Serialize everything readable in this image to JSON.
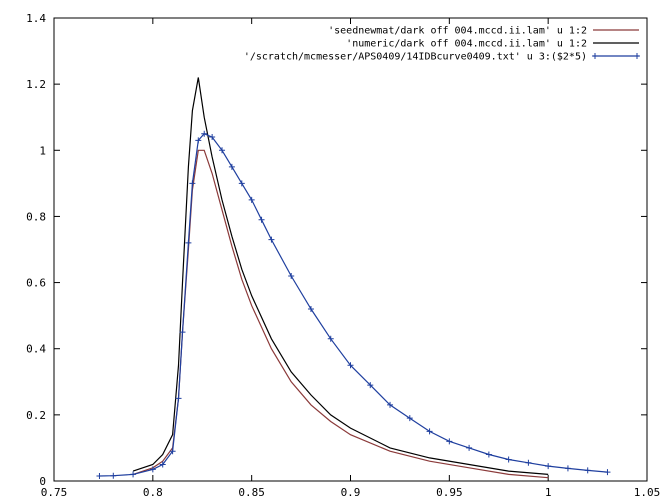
{
  "chart_data": {
    "type": "line",
    "title": "",
    "xlabel": "",
    "ylabel": "",
    "xlim": [
      0.75,
      1.05
    ],
    "ylim": [
      0,
      1.4
    ],
    "x_ticks": [
      "0.75",
      "0.8",
      "0.85",
      "0.9",
      "0.95",
      "1",
      "1.05"
    ],
    "y_ticks": [
      "0",
      "0.2",
      "0.4",
      "0.6",
      "0.8",
      "1",
      "1.2",
      "1.4"
    ],
    "grid": false,
    "legend_position": "top-right",
    "series": [
      {
        "name": "'seednewmat/dark off 004.mccd.ii.lam' u 1:2",
        "color": "#8b3a3a",
        "marker": "none",
        "x": [
          0.79,
          0.8,
          0.805,
          0.81,
          0.813,
          0.815,
          0.818,
          0.82,
          0.823,
          0.826,
          0.83,
          0.835,
          0.84,
          0.845,
          0.85,
          0.86,
          0.87,
          0.88,
          0.89,
          0.9,
          0.92,
          0.94,
          0.96,
          0.98,
          1.0
        ],
        "y": [
          0.02,
          0.04,
          0.06,
          0.1,
          0.25,
          0.45,
          0.7,
          0.88,
          1.0,
          1.0,
          0.93,
          0.82,
          0.71,
          0.61,
          0.53,
          0.4,
          0.3,
          0.23,
          0.18,
          0.14,
          0.09,
          0.06,
          0.04,
          0.02,
          0.01
        ]
      },
      {
        "name": "'numeric/dark off 004.mccd.ii.lam' u 1:2",
        "color": "#000000",
        "marker": "none",
        "x": [
          0.79,
          0.8,
          0.805,
          0.81,
          0.813,
          0.815,
          0.818,
          0.82,
          0.823,
          0.826,
          0.83,
          0.835,
          0.84,
          0.845,
          0.85,
          0.86,
          0.87,
          0.88,
          0.89,
          0.9,
          0.92,
          0.94,
          0.96,
          0.98,
          1.0
        ],
        "y": [
          0.03,
          0.05,
          0.08,
          0.14,
          0.35,
          0.6,
          0.95,
          1.12,
          1.22,
          1.1,
          0.98,
          0.85,
          0.74,
          0.64,
          0.56,
          0.43,
          0.33,
          0.26,
          0.2,
          0.16,
          0.1,
          0.07,
          0.05,
          0.03,
          0.02
        ]
      },
      {
        "name": "'/scratch/mcmesser/APS0409/14IDBcurve0409.txt' u 3:($2*5)",
        "color": "#1f3f9f",
        "marker": "plus",
        "x": [
          0.773,
          0.78,
          0.79,
          0.8,
          0.805,
          0.81,
          0.813,
          0.815,
          0.818,
          0.82,
          0.823,
          0.826,
          0.83,
          0.835,
          0.84,
          0.845,
          0.85,
          0.855,
          0.86,
          0.87,
          0.88,
          0.89,
          0.9,
          0.91,
          0.92,
          0.93,
          0.94,
          0.95,
          0.96,
          0.97,
          0.98,
          0.99,
          1.0,
          1.01,
          1.02,
          1.03
        ],
        "y": [
          0.015,
          0.016,
          0.02,
          0.035,
          0.05,
          0.09,
          0.25,
          0.45,
          0.72,
          0.9,
          1.03,
          1.05,
          1.04,
          1.0,
          0.95,
          0.9,
          0.85,
          0.79,
          0.73,
          0.62,
          0.52,
          0.43,
          0.35,
          0.29,
          0.23,
          0.19,
          0.15,
          0.12,
          0.1,
          0.08,
          0.065,
          0.055,
          0.045,
          0.038,
          0.032,
          0.027
        ]
      }
    ]
  }
}
